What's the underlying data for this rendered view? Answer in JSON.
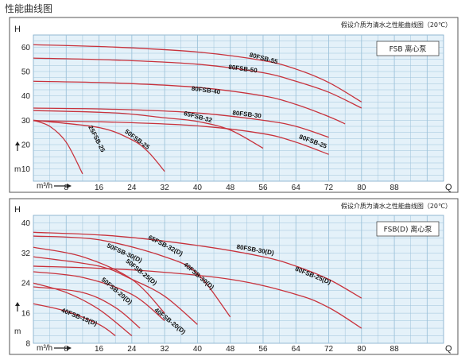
{
  "page_title": "性能曲线图",
  "colors": {
    "curve": "#c8323c",
    "grid": "#9ec3da",
    "bg": "#e4f1f9",
    "frame": "#555555"
  },
  "chart_data": [
    {
      "type": "line",
      "note": "假设介质为清水之性能曲线图（20℃）",
      "legend": "FSB  离心泵",
      "ylabel": "H",
      "yunit": "m",
      "xunit": "m³/h",
      "xlabel": "Q",
      "xlim": [
        0,
        100
      ],
      "ylim": [
        5,
        65
      ],
      "xticks": [
        8,
        16,
        24,
        32,
        40,
        48,
        56,
        64,
        72,
        80,
        88
      ],
      "yticks": [
        10,
        20,
        30,
        40,
        50,
        60
      ],
      "series": [
        {
          "name": "80FSB-55",
          "x": [
            0,
            20,
            40,
            56,
            64,
            72,
            80
          ],
          "y": [
            61,
            60,
            58,
            54.5,
            51,
            45.5,
            37.5
          ],
          "label_at": [
            56,
            54.6
          ]
        },
        {
          "name": "80FSB-50",
          "x": [
            0,
            20,
            40,
            56,
            64,
            72,
            80
          ],
          "y": [
            55.5,
            54.7,
            53,
            49.5,
            46,
            41.5,
            35
          ],
          "label_at": [
            51,
            50.3
          ]
        },
        {
          "name": "80FSB-40",
          "x": [
            0,
            20,
            40,
            56,
            64,
            72,
            76
          ],
          "y": [
            46,
            45.3,
            43.5,
            40,
            36.5,
            31.5,
            28.5
          ],
          "label_at": [
            42,
            41.5
          ]
        },
        {
          "name": "80FSB-30",
          "x": [
            0,
            20,
            40,
            56,
            64,
            72
          ],
          "y": [
            35,
            34.5,
            33,
            30,
            27.5,
            23
          ],
          "label_at": [
            52,
            31.6
          ]
        },
        {
          "name": "65FSB-32",
          "x": [
            0,
            20,
            32,
            40,
            48,
            56
          ],
          "y": [
            34,
            33,
            31,
            29.5,
            26,
            18.5
          ],
          "label_at": [
            40,
            30.6
          ]
        },
        {
          "name": "80FSB-25",
          "x": [
            0,
            20,
            40,
            56,
            64,
            72
          ],
          "y": [
            29.8,
            29.2,
            27.7,
            24.5,
            21,
            16
          ],
          "label_at": [
            68,
            20.5
          ]
        },
        {
          "name": "50FSB-25",
          "x": [
            0,
            16,
            24,
            28,
            32
          ],
          "y": [
            30,
            27,
            22,
            17,
            9
          ],
          "label_at": [
            25,
            21.5
          ]
        },
        {
          "name": "25FSB-25",
          "x": [
            0,
            4,
            8,
            12
          ],
          "y": [
            30,
            27.5,
            21,
            8
          ],
          "label_at": [
            15,
            22
          ]
        }
      ]
    },
    {
      "type": "line",
      "note": "假设介质为清水之性能曲线图（20℃）",
      "legend": "FSB(D) 离心泵",
      "ylabel": "H",
      "yunit": "m",
      "xunit": "m³/h",
      "xlabel": "Q",
      "xlim": [
        0,
        100
      ],
      "ylim": [
        8,
        42
      ],
      "xticks": [
        8,
        16,
        24,
        32,
        40,
        48,
        56,
        64,
        72,
        80,
        88
      ],
      "yticks": [
        8,
        16,
        24,
        32,
        40
      ],
      "series": [
        {
          "name": "80FSB-30(D)",
          "x": [
            0,
            20,
            40,
            56,
            64,
            72,
            80
          ],
          "y": [
            37.5,
            36.5,
            34,
            31,
            28.5,
            25,
            20
          ],
          "label_at": [
            54,
            32.3
          ]
        },
        {
          "name": "65FSB-32(D)",
          "x": [
            0,
            16,
            32,
            40,
            48
          ],
          "y": [
            36.5,
            35.5,
            31,
            26.5,
            15
          ],
          "label_at": [
            32,
            33.5
          ]
        },
        {
          "name": "50FSB-30(D)",
          "x": [
            0,
            12,
            24,
            32
          ],
          "y": [
            33.5,
            31,
            25,
            16
          ],
          "label_at": [
            22,
            31.5
          ]
        },
        {
          "name": "80FSB-25(D)",
          "x": [
            0,
            24,
            48,
            64,
            72,
            80
          ],
          "y": [
            28.5,
            27.5,
            25,
            21,
            17.5,
            12
          ],
          "label_at": [
            68,
            25.5
          ]
        },
        {
          "name": "40FSB-30(D)",
          "x": [
            0,
            16,
            24,
            32,
            40
          ],
          "y": [
            31,
            28.5,
            25,
            20.5,
            13
          ],
          "label_at": [
            40,
            25.5
          ]
        },
        {
          "name": "50FSB-25(D)",
          "x": [
            0,
            12,
            24,
            32
          ],
          "y": [
            27,
            25.5,
            21,
            14
          ],
          "label_at": [
            26,
            26.5
          ]
        },
        {
          "name": "50FSB-20(D)",
          "x": [
            0,
            12,
            20,
            26
          ],
          "y": [
            23,
            21.5,
            17.5,
            12
          ],
          "label_at": [
            20,
            21.5
          ]
        },
        {
          "name": "40FSB-20(D)",
          "x": [
            0,
            8,
            16,
            24
          ],
          "y": [
            24,
            21.5,
            17,
            10
          ],
          "label_at": [
            33,
            13.5
          ]
        },
        {
          "name": "40FSB-15(D)",
          "x": [
            0,
            8,
            16,
            20
          ],
          "y": [
            18.5,
            16.5,
            13,
            10
          ],
          "label_at": [
            11,
            14.5
          ]
        }
      ]
    }
  ]
}
